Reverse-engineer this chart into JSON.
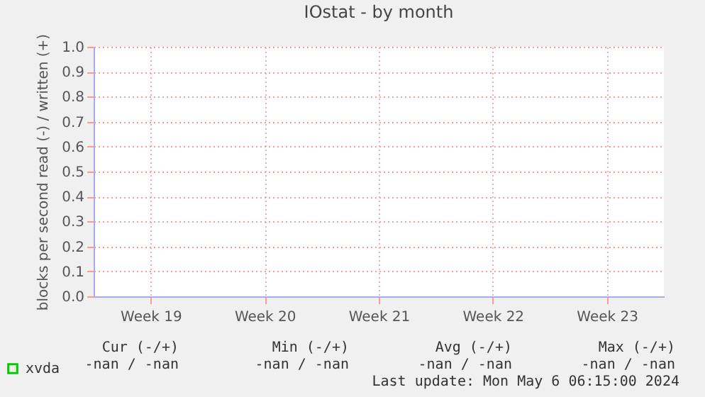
{
  "chart_data": {
    "type": "line",
    "title": "IOstat - by month",
    "ylabel": "blocks per second read (-) / written (+)",
    "categories": [
      "Week 19",
      "Week 20",
      "Week 21",
      "Week 22",
      "Week 23"
    ],
    "series": [
      {
        "name": "xvda",
        "color": "#00cc00",
        "values": [
          null,
          null,
          null,
          null,
          null
        ]
      }
    ],
    "ylim": [
      0,
      1.0
    ],
    "yticks": [
      {
        "value": 0,
        "label": "0.0"
      },
      {
        "value": 0.1,
        "label": "0.1"
      },
      {
        "value": 0.2,
        "label": "0.2"
      },
      {
        "value": 0.3,
        "label": "0.3"
      },
      {
        "value": 0.4,
        "label": "0.4"
      },
      {
        "value": 0.5,
        "label": "0.5"
      },
      {
        "value": 0.6,
        "label": "0.6"
      },
      {
        "value": 0.7,
        "label": "0.7"
      },
      {
        "value": 0.8,
        "label": "0.8"
      },
      {
        "value": 0.9,
        "label": "0.9"
      },
      {
        "value": 1.0,
        "label": "1.0"
      }
    ],
    "grid": true,
    "legend": "bottom left",
    "annotations": [
      "Cur (-/+)",
      "Min (-/+)",
      "Avg (-/+)",
      "Max (-/+)",
      "-nan /   -nan",
      "-nan /   -nan",
      "-nan /   -nan",
      "-nan /   -nan",
      "Last update:  Mon May  6 06:15:00 2024"
    ]
  }
}
